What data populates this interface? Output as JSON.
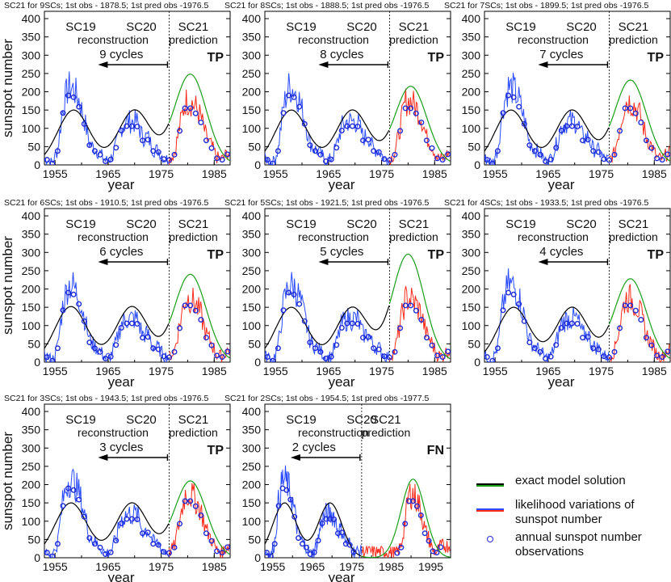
{
  "figure_title": "SC21 prediction panels",
  "legend": {
    "model": "exact model solution",
    "likelihood_line1": "likelihood variations of",
    "likelihood_line2": "sunspot number",
    "obs_line1": "annual sunspot number",
    "obs_line2": "observations"
  },
  "colors": {
    "model": "#000000",
    "model_pred": "#1a9e1a",
    "likelihood_fit": "#2b4bff",
    "likelihood_pred": "#ff2a1a",
    "observations": "#1f2bd6"
  },
  "chart_data": [
    {
      "type": "line",
      "title": "SC21 for 9SCs; 1st obs - 1878.5; 1st pred obs -1976.5",
      "cycles_label": "9 cycles",
      "flag": "TP",
      "xlabel": "year",
      "ylabel": "sunspot number",
      "xlim": [
        1953,
        1988
      ],
      "ylim": [
        0,
        420
      ],
      "xticks": [
        1955,
        1965,
        1975,
        1985
      ],
      "yticks": [
        0,
        50,
        100,
        150,
        200,
        250,
        300,
        350,
        400
      ],
      "split_year": 1976.5,
      "labels": {
        "sc19": "SC19",
        "sc20": "SC20",
        "reconstruction": "reconstruction",
        "sc21": "SC21",
        "prediction": "prediction"
      },
      "model_peaks": [
        {
          "year": 1958.5,
          "value": 150
        },
        {
          "year": 1970.0,
          "value": 150
        },
        {
          "year": 1980.5,
          "value": 248
        }
      ]
    },
    {
      "type": "line",
      "title": "SC21 for 8SCs; 1st obs - 1888.5; 1st pred obs -1976.5",
      "cycles_label": "8 cycles",
      "flag": "TP",
      "xlabel": "year",
      "ylabel": "sunspot number",
      "xlim": [
        1953,
        1988
      ],
      "ylim": [
        0,
        420
      ],
      "xticks": [
        1955,
        1965,
        1975,
        1985
      ],
      "yticks": [
        0,
        50,
        100,
        150,
        200,
        250,
        300,
        350,
        400
      ],
      "split_year": 1976.5,
      "labels": {
        "sc19": "SC19",
        "sc20": "SC20",
        "reconstruction": "reconstruction",
        "sc21": "SC21",
        "prediction": "prediction"
      },
      "model_peaks": [
        {
          "year": 1958.0,
          "value": 150
        },
        {
          "year": 1969.5,
          "value": 150
        },
        {
          "year": 1980.5,
          "value": 215
        }
      ]
    },
    {
      "type": "line",
      "title": "SC21 for 7SCs; 1st obs - 1899.5; 1st pred obs -1976.5",
      "cycles_label": "7 cycles",
      "flag": "TP",
      "xlabel": "year",
      "ylabel": "sunspot number",
      "xlim": [
        1953,
        1988
      ],
      "ylim": [
        0,
        420
      ],
      "xticks": [
        1955,
        1965,
        1975,
        1985
      ],
      "yticks": [
        0,
        50,
        100,
        150,
        200,
        250,
        300,
        350,
        400
      ],
      "split_year": 1976.5,
      "labels": {
        "sc19": "SC19",
        "sc20": "SC20",
        "reconstruction": "reconstruction",
        "sc21": "SC21",
        "prediction": "prediction"
      },
      "model_peaks": [
        {
          "year": 1958.0,
          "value": 150
        },
        {
          "year": 1969.5,
          "value": 150
        },
        {
          "year": 1980.5,
          "value": 232
        }
      ]
    },
    {
      "type": "line",
      "title": "SC21 for 6SCs; 1st obs - 1910.5; 1st pred obs -1976.5",
      "cycles_label": "6 cycles",
      "flag": "TP",
      "xlabel": "year",
      "ylabel": "sunspot number",
      "xlim": [
        1953,
        1988
      ],
      "ylim": [
        0,
        420
      ],
      "xticks": [
        1955,
        1965,
        1975,
        1985
      ],
      "yticks": [
        0,
        50,
        100,
        150,
        200,
        250,
        300,
        350,
        400
      ],
      "split_year": 1976.5,
      "labels": {
        "sc19": "SC19",
        "sc20": "SC20",
        "reconstruction": "reconstruction",
        "sc21": "SC21",
        "prediction": "prediction"
      },
      "model_peaks": [
        {
          "year": 1958.0,
          "value": 152
        },
        {
          "year": 1969.5,
          "value": 152
        },
        {
          "year": 1980.5,
          "value": 240
        }
      ]
    },
    {
      "type": "line",
      "title": "SC21 for 5SCs; 1st obs - 1921.5; 1st pred obs -1976.5",
      "cycles_label": "5 cycles",
      "flag": "TP",
      "xlabel": "year",
      "ylabel": "sunspot number",
      "xlim": [
        1953,
        1988
      ],
      "ylim": [
        0,
        420
      ],
      "xticks": [
        1955,
        1965,
        1975,
        1985
      ],
      "yticks": [
        0,
        50,
        100,
        150,
        200,
        250,
        300,
        350,
        400
      ],
      "split_year": 1976.5,
      "labels": {
        "sc19": "SC19",
        "sc20": "SC20",
        "reconstruction": "reconstruction",
        "sc21": "SC21",
        "prediction": "prediction"
      },
      "model_peaks": [
        {
          "year": 1958.0,
          "value": 150
        },
        {
          "year": 1969.5,
          "value": 150
        },
        {
          "year": 1980.0,
          "value": 295
        }
      ]
    },
    {
      "type": "line",
      "title": "SC21 for 4SCs; 1st obs - 1933.5; 1st pred obs -1976.5",
      "cycles_label": "4 cycles",
      "flag": "TP",
      "xlabel": "year",
      "ylabel": "sunspot number",
      "xlim": [
        1953,
        1988
      ],
      "ylim": [
        0,
        420
      ],
      "xticks": [
        1955,
        1965,
        1975,
        1985
      ],
      "yticks": [
        0,
        50,
        100,
        150,
        200,
        250,
        300,
        350,
        400
      ],
      "split_year": 1976.5,
      "labels": {
        "sc19": "SC19",
        "sc20": "SC20",
        "reconstruction": "reconstruction",
        "sc21": "SC21",
        "prediction": "prediction"
      },
      "model_peaks": [
        {
          "year": 1958.5,
          "value": 150
        },
        {
          "year": 1969.5,
          "value": 150
        },
        {
          "year": 1980.5,
          "value": 228
        }
      ]
    },
    {
      "type": "line",
      "title": "SC21 for 3SCs; 1st obs - 1943.5; 1st pred obs -1976.5",
      "cycles_label": "3 cycles",
      "flag": "TP",
      "xlabel": "year",
      "ylabel": "sunspot number",
      "xlim": [
        1953,
        1988
      ],
      "ylim": [
        0,
        420
      ],
      "xticks": [
        1955,
        1965,
        1975,
        1985
      ],
      "yticks": [
        0,
        50,
        100,
        150,
        200,
        250,
        300,
        350,
        400
      ],
      "split_year": 1976.5,
      "labels": {
        "sc19": "SC19",
        "sc20": "SC20",
        "reconstruction": "reconstruction",
        "sc21": "SC21",
        "prediction": "prediction"
      },
      "model_peaks": [
        {
          "year": 1958.0,
          "value": 150
        },
        {
          "year": 1969.5,
          "value": 150
        },
        {
          "year": 1980.5,
          "value": 210
        }
      ]
    },
    {
      "type": "line",
      "title": "SC21 for 2SCs; 1st obs - 1954.5; 1st pred obs -1977.5",
      "cycles_label": "2 cycles",
      "flag": "FN",
      "xlabel": "year",
      "ylabel": "sunspot number",
      "xlim": [
        1953,
        2000
      ],
      "ylim": [
        0,
        420
      ],
      "xticks": [
        1955,
        1965,
        1975,
        1985,
        1995
      ],
      "yticks": [
        0,
        50,
        100,
        150,
        200,
        250,
        300,
        350,
        400
      ],
      "split_year": 1977.5,
      "labels": {
        "sc19": "SC19",
        "sc20": "SC20",
        "reconstruction": "reconstruction",
        "sc21": "SC21",
        "prediction": "prediction"
      },
      "model_peaks": [
        {
          "year": 1958.0,
          "value": 150
        },
        {
          "year": 1969.5,
          "value": 150
        },
        {
          "year": 1990.5,
          "value": 215
        }
      ]
    }
  ],
  "observations": {
    "years": [
      1953.5,
      1954.5,
      1955.5,
      1956.5,
      1957.5,
      1958.5,
      1959.5,
      1960.5,
      1961.5,
      1962.5,
      1963.5,
      1964.5,
      1965.5,
      1966.5,
      1967.5,
      1968.5,
      1969.5,
      1970.5,
      1971.5,
      1972.5,
      1973.5,
      1974.5,
      1975.5,
      1976.5,
      1977.5,
      1978.5,
      1979.5,
      1980.5,
      1981.5,
      1982.5,
      1983.5,
      1984.5,
      1985.5,
      1986.5,
      1987.5
    ],
    "values": [
      14,
      4,
      38,
      142,
      190,
      185,
      159,
      112,
      54,
      38,
      28,
      10,
      15,
      47,
      94,
      106,
      106,
      105,
      67,
      69,
      38,
      35,
      16,
      13,
      28,
      93,
      155,
      155,
      141,
      116,
      67,
      46,
      18,
      14,
      29
    ]
  }
}
